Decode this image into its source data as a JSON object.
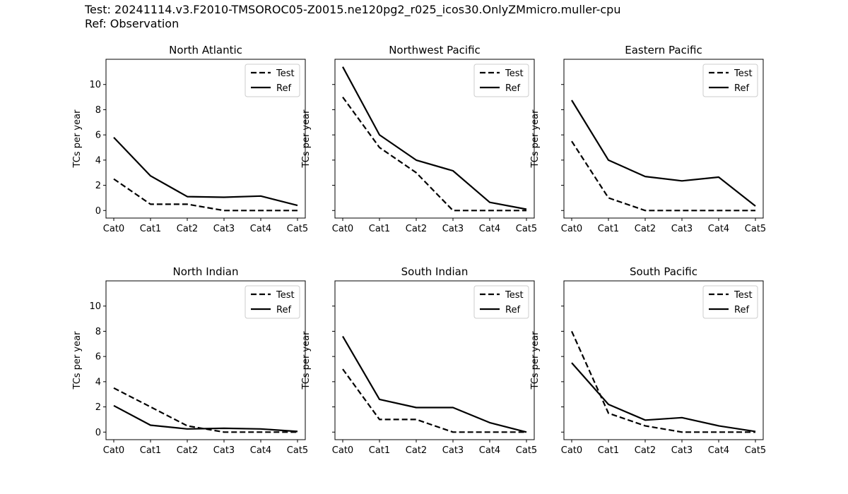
{
  "header": {
    "test_line": "Test: 20241114.v3.F2010-TMSOROC05-Z0015.ne120pg2_r025_icos30.OnlyZMmicro.muller-cpu",
    "ref_line": "Ref: Observation"
  },
  "chart_data": [
    {
      "type": "line",
      "title": "North Atlantic",
      "xlabel": "",
      "ylabel": "TCs per year",
      "categories": [
        "Cat0",
        "Cat1",
        "Cat2",
        "Cat3",
        "Cat4",
        "Cat5"
      ],
      "ylim": [
        -0.6,
        12
      ],
      "yticks": [
        0,
        2,
        4,
        6,
        8,
        10
      ],
      "show_ytick_labels": true,
      "legend_position": "upper-right",
      "series": [
        {
          "name": "Test",
          "style": "dashed",
          "values": [
            2.5,
            0.5,
            0.5,
            0.0,
            0.0,
            0.0
          ]
        },
        {
          "name": "Ref",
          "style": "solid",
          "values": [
            5.8,
            2.75,
            1.1,
            1.05,
            1.15,
            0.4
          ]
        }
      ]
    },
    {
      "type": "line",
      "title": "Northwest Pacific",
      "xlabel": "",
      "ylabel": "TCs per year",
      "categories": [
        "Cat0",
        "Cat1",
        "Cat2",
        "Cat3",
        "Cat4",
        "Cat5"
      ],
      "ylim": [
        -0.6,
        12
      ],
      "yticks": [
        0,
        2,
        4,
        6,
        8,
        10
      ],
      "show_ytick_labels": false,
      "legend_position": "upper-right",
      "series": [
        {
          "name": "Test",
          "style": "dashed",
          "values": [
            9.0,
            5.0,
            3.0,
            0.0,
            0.0,
            0.0
          ]
        },
        {
          "name": "Ref",
          "style": "solid",
          "values": [
            11.4,
            6.0,
            4.0,
            3.15,
            0.65,
            0.1
          ]
        }
      ]
    },
    {
      "type": "line",
      "title": "Eastern Pacific",
      "xlabel": "",
      "ylabel": "TCs per year",
      "categories": [
        "Cat0",
        "Cat1",
        "Cat2",
        "Cat3",
        "Cat4",
        "Cat5"
      ],
      "ylim": [
        -0.6,
        12
      ],
      "yticks": [
        0,
        2,
        4,
        6,
        8,
        10
      ],
      "show_ytick_labels": false,
      "legend_position": "upper-right",
      "series": [
        {
          "name": "Test",
          "style": "dashed",
          "values": [
            5.5,
            1.0,
            0.0,
            0.0,
            0.0,
            0.0
          ]
        },
        {
          "name": "Ref",
          "style": "solid",
          "values": [
            8.75,
            4.0,
            2.7,
            2.35,
            2.65,
            0.35
          ]
        }
      ]
    },
    {
      "type": "line",
      "title": "North Indian",
      "xlabel": "",
      "ylabel": "TCs per year",
      "categories": [
        "Cat0",
        "Cat1",
        "Cat2",
        "Cat3",
        "Cat4",
        "Cat5"
      ],
      "ylim": [
        -0.6,
        12
      ],
      "yticks": [
        0,
        2,
        4,
        6,
        8,
        10
      ],
      "show_ytick_labels": true,
      "legend_position": "upper-right",
      "series": [
        {
          "name": "Test",
          "style": "dashed",
          "values": [
            3.5,
            2.0,
            0.5,
            0.0,
            0.0,
            0.0
          ]
        },
        {
          "name": "Ref",
          "style": "solid",
          "values": [
            2.1,
            0.55,
            0.25,
            0.3,
            0.25,
            0.05
          ]
        }
      ]
    },
    {
      "type": "line",
      "title": "South Indian",
      "xlabel": "",
      "ylabel": "TCs per year",
      "categories": [
        "Cat0",
        "Cat1",
        "Cat2",
        "Cat3",
        "Cat4",
        "Cat5"
      ],
      "ylim": [
        -0.6,
        12
      ],
      "yticks": [
        0,
        2,
        4,
        6,
        8,
        10
      ],
      "show_ytick_labels": false,
      "legend_position": "upper-right",
      "series": [
        {
          "name": "Test",
          "style": "dashed",
          "values": [
            5.0,
            1.0,
            1.0,
            0.0,
            0.0,
            0.0
          ]
        },
        {
          "name": "Ref",
          "style": "solid",
          "values": [
            7.6,
            2.6,
            1.95,
            1.95,
            0.75,
            0.0
          ]
        }
      ]
    },
    {
      "type": "line",
      "title": "South Pacific",
      "xlabel": "",
      "ylabel": "TCs per year",
      "categories": [
        "Cat0",
        "Cat1",
        "Cat2",
        "Cat3",
        "Cat4",
        "Cat5"
      ],
      "ylim": [
        -0.6,
        12
      ],
      "yticks": [
        0,
        2,
        4,
        6,
        8,
        10
      ],
      "show_ytick_labels": false,
      "legend_position": "upper-right",
      "series": [
        {
          "name": "Test",
          "style": "dashed",
          "values": [
            8.0,
            1.5,
            0.5,
            0.0,
            0.0,
            0.0
          ]
        },
        {
          "name": "Ref",
          "style": "solid",
          "values": [
            5.5,
            2.2,
            0.95,
            1.15,
            0.5,
            0.05
          ]
        }
      ]
    }
  ]
}
